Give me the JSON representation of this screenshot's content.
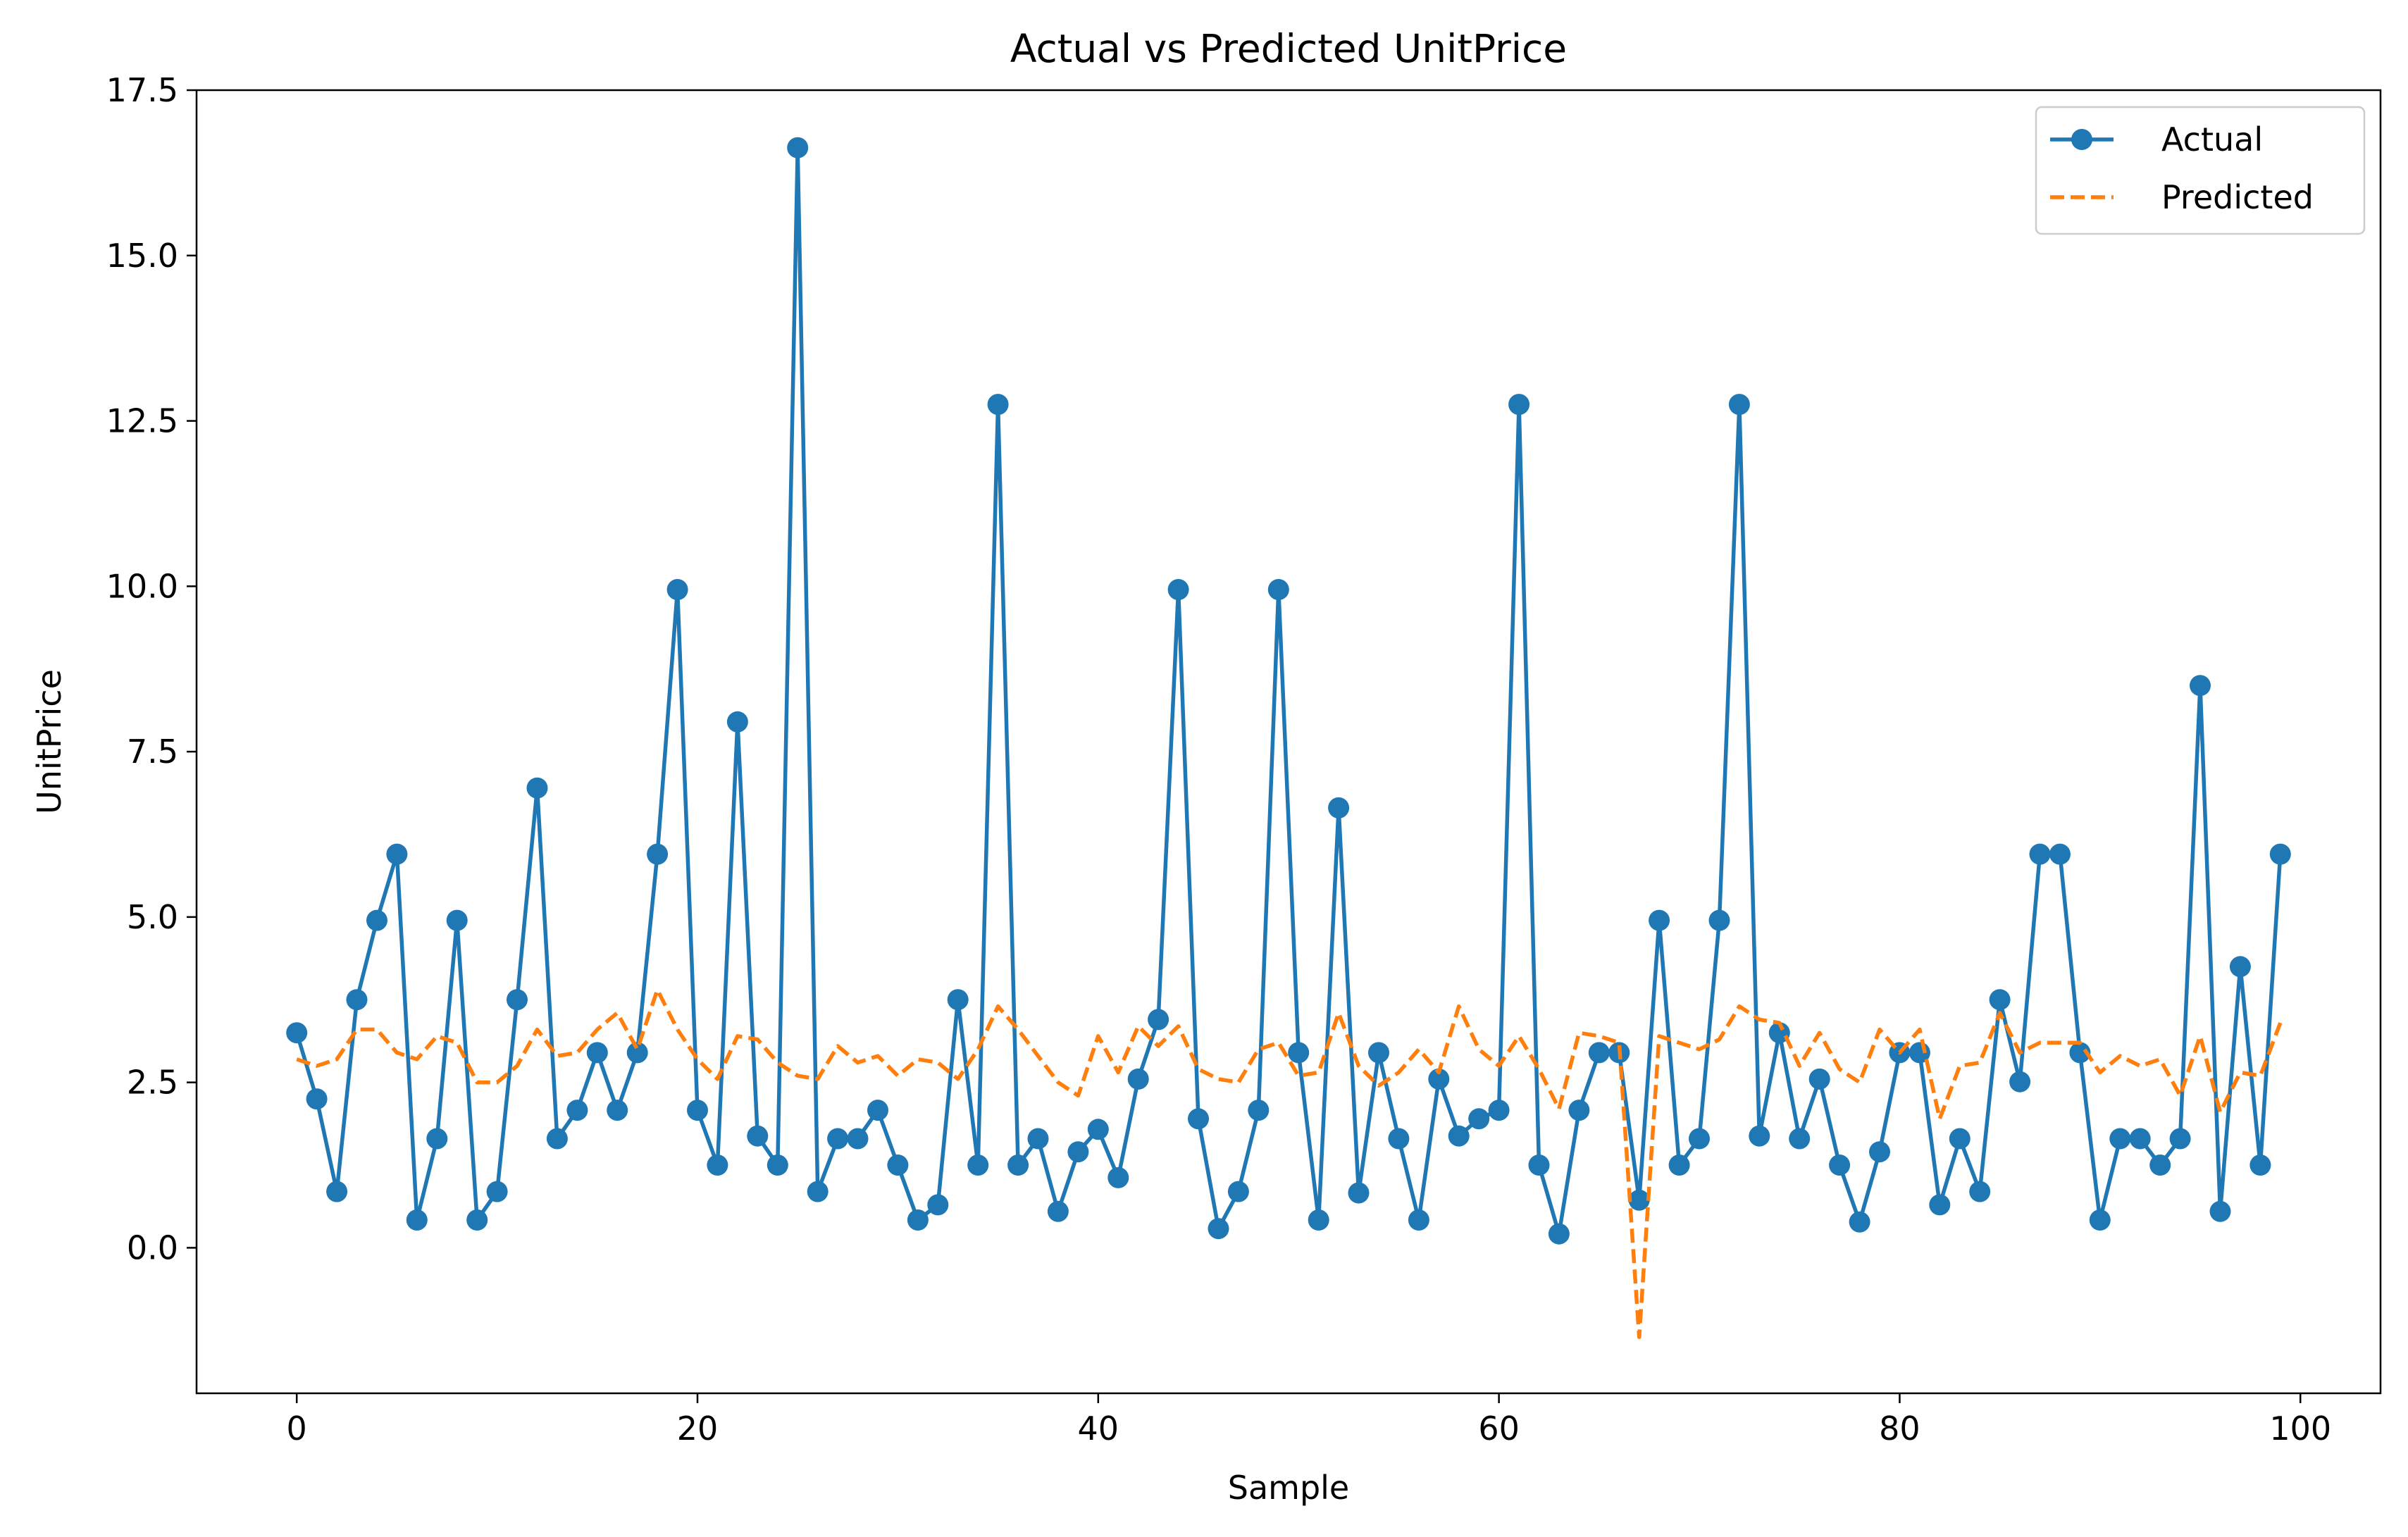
{
  "chart_data": {
    "type": "line",
    "title": "Actual vs Predicted UnitPrice",
    "xlabel": "Sample",
    "ylabel": "UnitPrice",
    "xlim": [
      -5,
      104
    ],
    "ylim": [
      -2.2,
      17.5
    ],
    "xticks": [
      0,
      20,
      40,
      60,
      80,
      100
    ],
    "yticks": [
      0.0,
      2.5,
      5.0,
      7.5,
      10.0,
      12.5,
      15.0,
      17.5
    ],
    "grid": false,
    "legend_position": "top-right",
    "series": [
      {
        "name": "Actual",
        "color": "#1f77b4",
        "style": "solid-with-circle-markers",
        "x": [
          0,
          1,
          2,
          3,
          4,
          5,
          6,
          7,
          8,
          9,
          10,
          11,
          12,
          13,
          14,
          15,
          16,
          17,
          18,
          19,
          20,
          21,
          22,
          23,
          24,
          25,
          26,
          27,
          28,
          29,
          30,
          31,
          32,
          33,
          34,
          35,
          36,
          37,
          38,
          39,
          40,
          41,
          42,
          43,
          44,
          45,
          46,
          47,
          48,
          49,
          50,
          51,
          52,
          53,
          54,
          55,
          56,
          57,
          58,
          59,
          60,
          61,
          62,
          63,
          64,
          65,
          66,
          67,
          68,
          69,
          70,
          71,
          72,
          73,
          74,
          75,
          76,
          77,
          78,
          79,
          80,
          81,
          82,
          83,
          84,
          85,
          86,
          87,
          88,
          89,
          90,
          91,
          92,
          93,
          94,
          95,
          96,
          97,
          98,
          99
        ],
        "values": [
          3.25,
          2.25,
          0.85,
          3.75,
          4.95,
          5.95,
          0.42,
          1.65,
          4.95,
          0.42,
          0.85,
          3.75,
          6.95,
          1.65,
          2.08,
          2.95,
          2.08,
          2.95,
          5.95,
          9.95,
          2.08,
          1.25,
          7.95,
          1.69,
          1.25,
          16.63,
          0.85,
          1.65,
          1.65,
          2.08,
          1.25,
          0.42,
          0.65,
          3.75,
          1.25,
          12.75,
          1.25,
          1.65,
          0.55,
          1.45,
          1.79,
          1.06,
          2.55,
          3.45,
          9.95,
          1.95,
          0.29,
          0.85,
          2.08,
          9.95,
          2.95,
          0.42,
          6.65,
          0.83,
          2.95,
          1.65,
          0.42,
          2.55,
          1.69,
          1.95,
          2.08,
          12.75,
          1.25,
          0.21,
          2.08,
          2.95,
          2.95,
          0.72,
          4.95,
          1.25,
          1.65,
          4.95,
          12.75,
          1.69,
          3.25,
          1.65,
          2.55,
          1.25,
          0.39,
          1.45,
          2.95,
          2.95,
          0.65,
          1.65,
          0.85,
          3.75,
          2.51,
          5.95,
          5.95,
          2.95,
          0.42,
          1.65,
          1.65,
          1.25,
          1.65,
          8.5,
          0.55,
          4.25,
          1.25,
          5.95
        ]
      },
      {
        "name": "Predicted",
        "color": "#ff7f0e",
        "style": "dashed",
        "x": [
          0,
          1,
          2,
          3,
          4,
          5,
          6,
          7,
          8,
          9,
          10,
          11,
          12,
          13,
          14,
          15,
          16,
          17,
          18,
          19,
          20,
          21,
          22,
          23,
          24,
          25,
          26,
          27,
          28,
          29,
          30,
          31,
          32,
          33,
          34,
          35,
          36,
          37,
          38,
          39,
          40,
          41,
          42,
          43,
          44,
          45,
          46,
          47,
          48,
          49,
          50,
          51,
          52,
          53,
          54,
          55,
          56,
          57,
          58,
          59,
          60,
          61,
          62,
          63,
          64,
          65,
          66,
          67,
          68,
          69,
          70,
          71,
          72,
          73,
          74,
          75,
          76,
          77,
          78,
          79,
          80,
          81,
          82,
          83,
          84,
          85,
          86,
          87,
          88,
          89,
          90,
          91,
          92,
          93,
          94,
          95,
          96,
          97,
          98,
          99
        ],
        "values": [
          2.85,
          2.75,
          2.85,
          3.3,
          3.3,
          2.95,
          2.85,
          3.2,
          3.1,
          2.5,
          2.5,
          2.75,
          3.3,
          2.9,
          2.95,
          3.3,
          3.55,
          3.0,
          3.9,
          3.3,
          2.85,
          2.55,
          3.2,
          3.15,
          2.8,
          2.6,
          2.55,
          3.05,
          2.8,
          2.9,
          2.6,
          2.85,
          2.8,
          2.55,
          3.0,
          3.65,
          3.3,
          2.9,
          2.5,
          2.3,
          3.2,
          2.65,
          3.35,
          3.05,
          3.35,
          2.7,
          2.55,
          2.5,
          3.0,
          3.1,
          2.6,
          2.65,
          3.55,
          2.75,
          2.45,
          2.65,
          3.0,
          2.65,
          3.65,
          3.0,
          2.75,
          3.2,
          2.7,
          2.1,
          3.25,
          3.2,
          3.1,
          -1.35,
          3.2,
          3.1,
          3.0,
          3.15,
          3.65,
          3.45,
          3.4,
          2.75,
          3.25,
          2.7,
          2.5,
          3.3,
          2.95,
          3.3,
          1.95,
          2.75,
          2.8,
          3.55,
          2.95,
          3.1,
          3.1,
          3.1,
          2.65,
          2.9,
          2.75,
          2.85,
          2.3,
          3.2,
          2.05,
          2.65,
          2.6,
          3.4
        ]
      }
    ]
  }
}
